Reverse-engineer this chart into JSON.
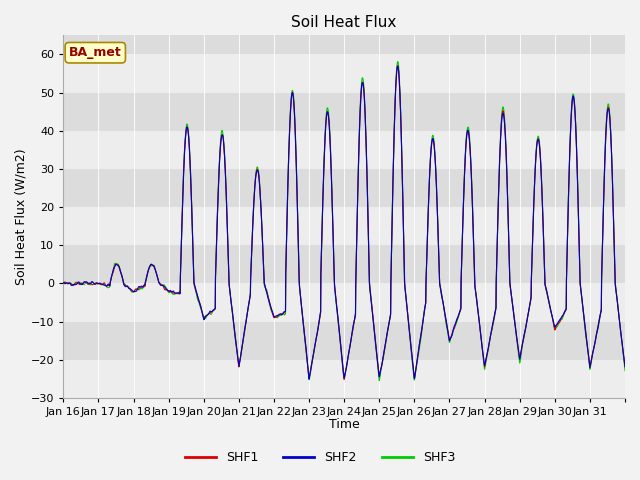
{
  "title": "Soil Heat Flux",
  "xlabel": "Time",
  "ylabel": "Soil Heat Flux (W/m2)",
  "ylim": [
    -30,
    65
  ],
  "yticks": [
    -30,
    -20,
    -10,
    0,
    10,
    20,
    30,
    40,
    50,
    60
  ],
  "legend_label": "BA_met",
  "legend_bg": "#FFFFCC",
  "legend_edge": "#999900",
  "legend_text_color": "#990000",
  "line_colors": {
    "SHF1": "#DD0000",
    "SHF2": "#0000CC",
    "SHF3": "#00CC00"
  },
  "bg_color": "#DCDCDC",
  "n_days": 16,
  "start_day": 16,
  "points_per_day": 144,
  "title_fontsize": 11,
  "axis_label_fontsize": 9,
  "tick_fontsize": 8,
  "day_peaks": [
    0,
    5,
    5,
    41,
    39,
    30,
    50,
    45,
    53,
    57,
    38,
    40,
    45,
    38,
    49,
    46
  ],
  "day_night_min": [
    0,
    -2,
    -2,
    -9,
    -22,
    -9,
    -25,
    -25,
    -25,
    -25,
    -15,
    -22,
    -20,
    -12,
    -22,
    -22
  ]
}
